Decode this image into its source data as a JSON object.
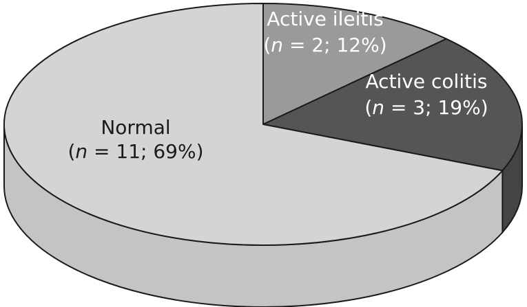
{
  "chart_data": {
    "type": "pie",
    "title": "",
    "slices": [
      {
        "name": "Normal",
        "n": 11,
        "percent": 69,
        "stat_prefix": "(",
        "stat_n_letter": "n",
        "stat_suffix": " = 11; 69%)",
        "color": "#d4d4d4",
        "side_color": "#c4c4c4",
        "label_color": "#1a1a1a"
      },
      {
        "name": "Active ileitis",
        "n": 2,
        "percent": 12,
        "stat_prefix": "(",
        "stat_n_letter": "n",
        "stat_suffix": " = 2; 12%)",
        "color": "#9a9a9a",
        "side_color": "#8a8a8a",
        "label_color": "#ffffff"
      },
      {
        "name": "Active colitis",
        "n": 3,
        "percent": 19,
        "stat_prefix": "(",
        "stat_n_letter": "n",
        "stat_suffix": " = 3; 19%)",
        "color": "#555555",
        "side_color": "#444444",
        "label_color": "#ffffff"
      }
    ],
    "style": "3d-tilted",
    "outline_color": "#1a1a1a"
  }
}
